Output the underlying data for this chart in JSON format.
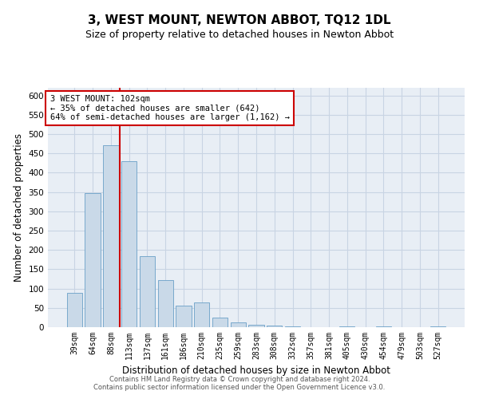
{
  "title": "3, WEST MOUNT, NEWTON ABBOT, TQ12 1DL",
  "subtitle": "Size of property relative to detached houses in Newton Abbot",
  "xlabel": "Distribution of detached houses by size in Newton Abbot",
  "ylabel": "Number of detached properties",
  "categories": [
    "39sqm",
    "64sqm",
    "88sqm",
    "113sqm",
    "137sqm",
    "161sqm",
    "186sqm",
    "210sqm",
    "235sqm",
    "259sqm",
    "283sqm",
    "308sqm",
    "332sqm",
    "357sqm",
    "381sqm",
    "405sqm",
    "430sqm",
    "454sqm",
    "479sqm",
    "503sqm",
    "527sqm"
  ],
  "values": [
    88,
    348,
    472,
    430,
    183,
    122,
    55,
    65,
    25,
    12,
    7,
    5,
    3,
    0,
    0,
    3,
    0,
    3,
    0,
    0,
    3
  ],
  "bar_color": "#c9d9e8",
  "bar_edge_color": "#6aa0c7",
  "vline_x": 2.5,
  "vline_color": "#cc0000",
  "annotation_text": "3 WEST MOUNT: 102sqm\n← 35% of detached houses are smaller (642)\n64% of semi-detached houses are larger (1,162) →",
  "annotation_box_color": "#ffffff",
  "annotation_box_edge": "#cc0000",
  "ylim": [
    0,
    620
  ],
  "yticks": [
    0,
    50,
    100,
    150,
    200,
    250,
    300,
    350,
    400,
    450,
    500,
    550,
    600
  ],
  "grid_color": "#c8d4e3",
  "bg_color": "#e8eef5",
  "footer": "Contains HM Land Registry data © Crown copyright and database right 2024.\nContains public sector information licensed under the Open Government Licence v3.0.",
  "title_fontsize": 11,
  "subtitle_fontsize": 9,
  "xlabel_fontsize": 8.5,
  "ylabel_fontsize": 8.5,
  "footer_fontsize": 6.0
}
